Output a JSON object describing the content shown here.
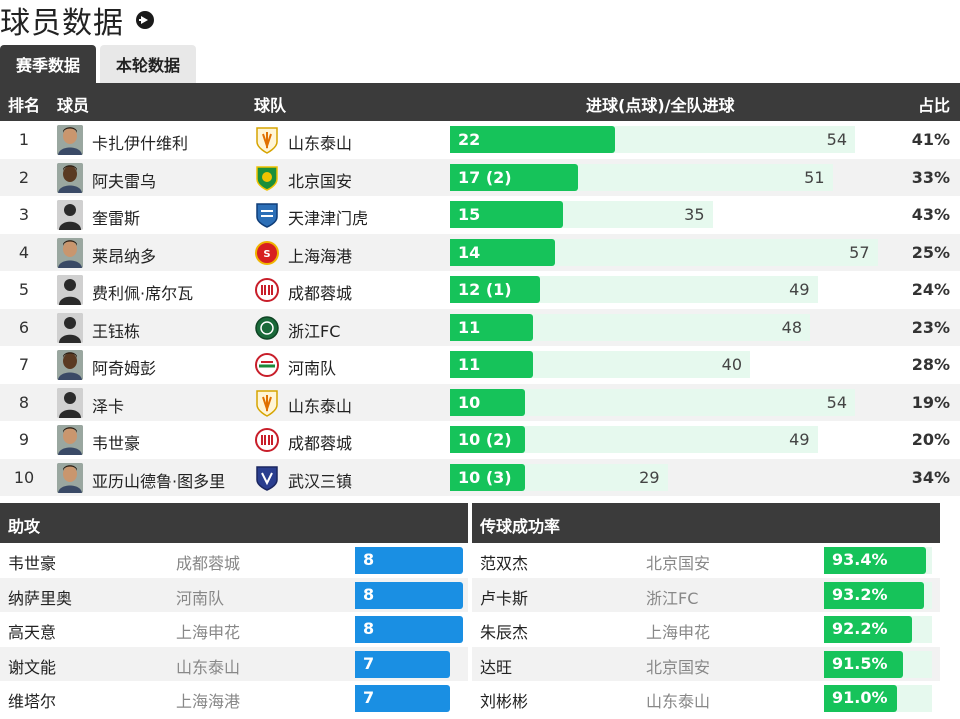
{
  "title": "球员数据",
  "tabs": [
    {
      "label": "赛季数据",
      "active": true
    },
    {
      "label": "本轮数据",
      "active": false
    }
  ],
  "table": {
    "headers": {
      "rank": "排名",
      "player": "球员",
      "team": "球队",
      "goals": "进球(点球)/全队进球",
      "pct": "占比"
    },
    "rows": [
      {
        "rank": "1",
        "player": "卡扎伊什维利",
        "team": "山东泰山",
        "goals": "22",
        "goal_value": 22,
        "team_total": "54",
        "team_total_value": 54,
        "pct": "41%",
        "avatar": "photo",
        "badge": "shandong"
      },
      {
        "rank": "2",
        "player": "阿夫雷乌",
        "team": "北京国安",
        "goals": "17 (2)",
        "goal_value": 17,
        "team_total": "51",
        "team_total_value": 51,
        "pct": "33%",
        "avatar": "photo-dark",
        "badge": "beijing"
      },
      {
        "rank": "3",
        "player": "奎雷斯",
        "team": "天津津门虎",
        "goals": "15",
        "goal_value": 15,
        "team_total": "35",
        "team_total_value": 35,
        "pct": "43%",
        "avatar": "silhouette",
        "badge": "tianjin"
      },
      {
        "rank": "4",
        "player": "莱昂纳多",
        "team": "上海海港",
        "goals": "14",
        "goal_value": 14,
        "team_total": "57",
        "team_total_value": 57,
        "pct": "25%",
        "avatar": "photo",
        "badge": "shanghai-port"
      },
      {
        "rank": "5",
        "player": "费利佩·席尔瓦",
        "team": "成都蓉城",
        "goals": "12 (1)",
        "goal_value": 12,
        "team_total": "49",
        "team_total_value": 49,
        "pct": "24%",
        "avatar": "silhouette",
        "badge": "chengdu"
      },
      {
        "rank": "6",
        "player": "王钰栋",
        "team": "浙江FC",
        "goals": "11",
        "goal_value": 11,
        "team_total": "48",
        "team_total_value": 48,
        "pct": "23%",
        "avatar": "silhouette",
        "badge": "zhejiang"
      },
      {
        "rank": "7",
        "player": "阿奇姆彭",
        "team": "河南队",
        "goals": "11",
        "goal_value": 11,
        "team_total": "40",
        "team_total_value": 40,
        "pct": "28%",
        "avatar": "photo-dark",
        "badge": "henan"
      },
      {
        "rank": "8",
        "player": "泽卡",
        "team": "山东泰山",
        "goals": "10",
        "goal_value": 10,
        "team_total": "54",
        "team_total_value": 54,
        "pct": "19%",
        "avatar": "silhouette",
        "badge": "shandong"
      },
      {
        "rank": "9",
        "player": "韦世豪",
        "team": "成都蓉城",
        "goals": "10 (2)",
        "goal_value": 10,
        "team_total": "49",
        "team_total_value": 49,
        "pct": "20%",
        "avatar": "photo",
        "badge": "chengdu"
      },
      {
        "rank": "10",
        "player": "亚历山德鲁·图多里",
        "team": "武汉三镇",
        "goals": "10 (3)",
        "goal_value": 10,
        "team_total": "29",
        "team_total_value": 29,
        "pct": "34%",
        "avatar": "photo",
        "badge": "wuhan"
      }
    ]
  },
  "assists": {
    "title": "助攻",
    "rows": [
      {
        "player": "韦世豪",
        "team": "成都蓉城",
        "value": "8",
        "num": 8
      },
      {
        "player": "纳萨里奥",
        "team": "河南队",
        "value": "8",
        "num": 8
      },
      {
        "player": "高天意",
        "team": "上海申花",
        "value": "8",
        "num": 8
      },
      {
        "player": "谢文能",
        "team": "山东泰山",
        "value": "7",
        "num": 7
      },
      {
        "player": "维塔尔",
        "team": "上海海港",
        "value": "7",
        "num": 7
      }
    ]
  },
  "passing": {
    "title": "传球成功率",
    "rows": [
      {
        "player": "范双杰",
        "team": "北京国安",
        "value": "93.4%",
        "num": 93.4
      },
      {
        "player": "卢卡斯",
        "team": "浙江FC",
        "value": "93.2%",
        "num": 93.2
      },
      {
        "player": "朱辰杰",
        "team": "上海申花",
        "value": "92.2%",
        "num": 92.2
      },
      {
        "player": "达旺",
        "team": "北京国安",
        "value": "91.5%",
        "num": 91.5
      },
      {
        "player": "刘彬彬",
        "team": "山东泰山",
        "value": "91.0%",
        "num": 91.0
      }
    ]
  },
  "colors": {
    "header_bg": "#3b3b3b",
    "goal_bar": "#16c35a",
    "goal_track": "#e6f9ee",
    "assist_bar": "#1a8fe3",
    "pass_bar": "#16c35a"
  }
}
